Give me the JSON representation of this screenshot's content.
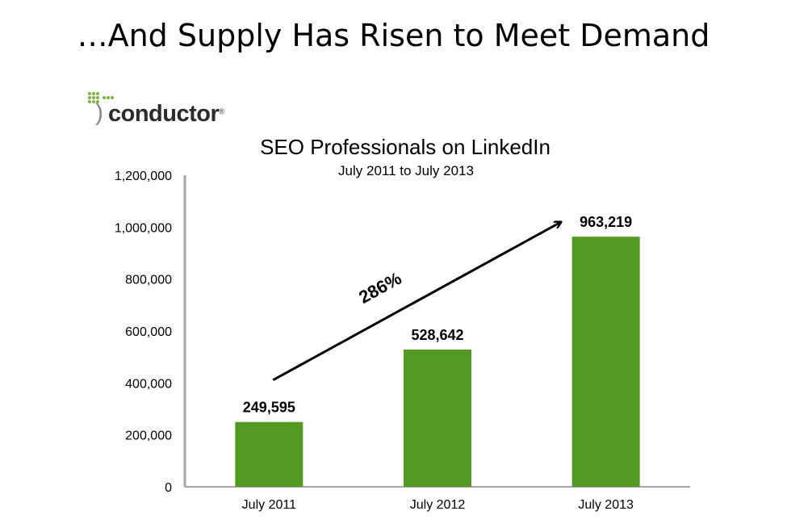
{
  "slide": {
    "title": "…And Supply Has Risen to Meet Demand"
  },
  "logo": {
    "name": "conductor",
    "reg_mark": "®"
  },
  "colors": {
    "bar": "#559925",
    "axis": "#a6a6a6",
    "text": "#000000"
  },
  "chart_data": {
    "type": "bar",
    "title": "SEO Professionals on LinkedIn",
    "subtitle": "July 2011 to July 2013",
    "categories": [
      "July 2011",
      "July 2012",
      "July 2013"
    ],
    "values": [
      249595,
      528642,
      963219
    ],
    "data_labels": [
      "249,595",
      "528,642",
      "963,219"
    ],
    "ylim": [
      0,
      1200000
    ],
    "yticks": [
      0,
      200000,
      400000,
      600000,
      800000,
      1000000,
      1200000
    ],
    "ytick_labels": [
      "0",
      "200,000",
      "400,000",
      "600,000",
      "800,000",
      "1,000,000",
      "1,200,000"
    ],
    "xlabel": "",
    "ylabel": "",
    "grid": false,
    "annotation": {
      "text": "286%",
      "type": "growth-arrow",
      "from_category": "July 2011",
      "to_category": "July 2013"
    }
  }
}
